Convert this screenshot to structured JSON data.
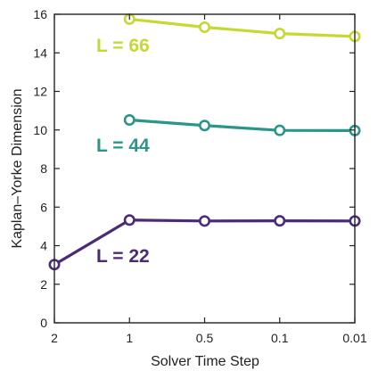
{
  "chart_data": {
    "type": "line",
    "title": "",
    "xlabel": "Solver Time Step",
    "ylabel": "Kaplan–Yorke Dimension",
    "categories": [
      "2",
      "1",
      "0.5",
      "0.1",
      "0.01"
    ],
    "ylim": [
      0,
      16
    ],
    "yticks": [
      "0",
      "2",
      "4",
      "6",
      "8",
      "10",
      "12",
      "14",
      "16"
    ],
    "grid": false,
    "legend": "none",
    "series": [
      {
        "name": "L = 66",
        "color": "#c5d932",
        "x": [
          "1",
          "0.5",
          "0.1",
          "0.01"
        ],
        "values": [
          15.75,
          15.33,
          15.0,
          14.85
        ]
      },
      {
        "name": "L = 44",
        "color": "#2a968a",
        "x": [
          "1",
          "0.5",
          "0.1",
          "0.01"
        ],
        "values": [
          10.52,
          10.23,
          9.98,
          9.97
        ]
      },
      {
        "name": "L = 22",
        "color": "#4b2a7a",
        "x": [
          "2",
          "1",
          "0.5",
          "0.1",
          "0.01"
        ],
        "values": [
          3.02,
          5.33,
          5.28,
          5.29,
          5.28
        ]
      }
    ]
  }
}
